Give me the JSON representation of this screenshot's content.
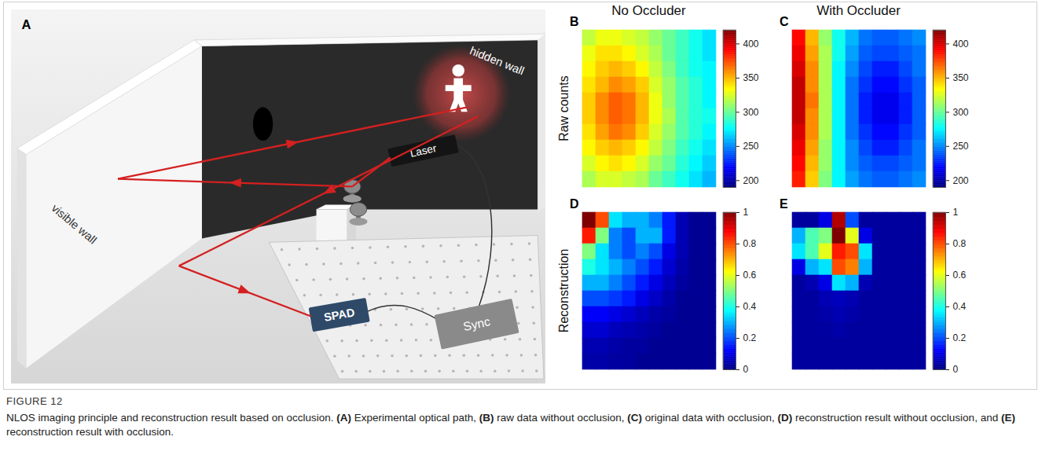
{
  "figure": {
    "label": "FIGURE 12",
    "caption": "NLOS imaging principle and reconstruction result based on occlusion. (A) Experimental optical path, (B) raw data without occlusion, (C) original data with occlusion, (D) reconstruction result without occlusion, and (E) reconstruction result with occlusion."
  },
  "diagram": {
    "panel": "A",
    "labels": {
      "hidden_wall": "hidden wall",
      "visible_wall": "visible wall",
      "laser": "Laser",
      "spad": "SPAD",
      "sync": "Sync"
    }
  },
  "column_titles": [
    "No Occluder",
    "With Occluder"
  ],
  "row_titles": [
    "Raw counts",
    "Reconstruction"
  ],
  "chart_data": [
    {
      "type": "heatmap",
      "panel": "B",
      "tick_labels": false,
      "cells": [
        [
          320,
          330,
          330,
          325,
          320,
          310,
          300,
          290,
          280,
          270
        ],
        [
          330,
          340,
          340,
          335,
          325,
          315,
          300,
          290,
          280,
          270
        ],
        [
          335,
          345,
          350,
          345,
          335,
          320,
          305,
          290,
          280,
          275
        ],
        [
          340,
          350,
          360,
          355,
          345,
          325,
          310,
          295,
          285,
          275
        ],
        [
          345,
          360,
          370,
          365,
          350,
          330,
          310,
          295,
          285,
          275
        ],
        [
          345,
          360,
          370,
          365,
          350,
          330,
          315,
          295,
          285,
          280
        ],
        [
          340,
          355,
          365,
          360,
          345,
          325,
          310,
          295,
          285,
          275
        ],
        [
          335,
          345,
          350,
          345,
          335,
          320,
          305,
          290,
          280,
          270
        ],
        [
          325,
          335,
          340,
          335,
          325,
          310,
          300,
          285,
          275,
          265
        ],
        [
          315,
          325,
          325,
          320,
          315,
          300,
          290,
          280,
          270,
          260
        ]
      ],
      "colorbar": {
        "range": [
          190,
          420
        ],
        "ticks": [
          200,
          250,
          300,
          350,
          400
        ]
      }
    },
    {
      "type": "heatmap",
      "panel": "C",
      "tick_labels": false,
      "cells": [
        [
          390,
          350,
          310,
          280,
          260,
          245,
          240,
          240,
          245,
          250
        ],
        [
          395,
          355,
          315,
          280,
          255,
          240,
          235,
          235,
          240,
          245
        ],
        [
          400,
          360,
          315,
          275,
          250,
          235,
          225,
          225,
          235,
          245
        ],
        [
          405,
          360,
          315,
          275,
          245,
          230,
          220,
          220,
          230,
          240
        ],
        [
          405,
          365,
          315,
          275,
          245,
          225,
          215,
          215,
          225,
          240
        ],
        [
          405,
          360,
          315,
          275,
          245,
          225,
          215,
          215,
          225,
          240
        ],
        [
          400,
          360,
          315,
          275,
          245,
          230,
          220,
          220,
          230,
          240
        ],
        [
          395,
          355,
          310,
          275,
          250,
          235,
          225,
          225,
          235,
          245
        ],
        [
          390,
          350,
          310,
          275,
          250,
          240,
          235,
          235,
          240,
          245
        ],
        [
          385,
          345,
          305,
          275,
          255,
          245,
          240,
          240,
          245,
          250
        ]
      ],
      "colorbar": {
        "range": [
          190,
          420
        ],
        "ticks": [
          200,
          250,
          300,
          350,
          400
        ]
      }
    },
    {
      "type": "heatmap",
      "panel": "D",
      "tick_labels": false,
      "cells": [
        [
          1.0,
          0.8,
          0.35,
          0.3,
          0.3,
          0.25,
          0.15,
          0.05,
          0.02,
          0.02
        ],
        [
          0.85,
          0.5,
          0.25,
          0.2,
          0.3,
          0.3,
          0.15,
          0.05,
          0.02,
          0.02
        ],
        [
          0.5,
          0.35,
          0.25,
          0.2,
          0.25,
          0.2,
          0.1,
          0.05,
          0.02,
          0.02
        ],
        [
          0.4,
          0.35,
          0.3,
          0.25,
          0.2,
          0.15,
          0.08,
          0.04,
          0.02,
          0.02
        ],
        [
          0.3,
          0.3,
          0.25,
          0.2,
          0.15,
          0.1,
          0.06,
          0.03,
          0.02,
          0.02
        ],
        [
          0.2,
          0.2,
          0.18,
          0.15,
          0.1,
          0.07,
          0.04,
          0.02,
          0.02,
          0.02
        ],
        [
          0.12,
          0.12,
          0.1,
          0.08,
          0.06,
          0.04,
          0.03,
          0.02,
          0.02,
          0.02
        ],
        [
          0.08,
          0.08,
          0.06,
          0.05,
          0.04,
          0.03,
          0.02,
          0.02,
          0.02,
          0.02
        ],
        [
          0.05,
          0.05,
          0.04,
          0.03,
          0.03,
          0.02,
          0.02,
          0.02,
          0.02,
          0.02
        ],
        [
          0.04,
          0.04,
          0.03,
          0.03,
          0.02,
          0.02,
          0.02,
          0.02,
          0.02,
          0.02
        ]
      ],
      "colorbar": {
        "range": [
          0,
          1
        ],
        "ticks": [
          0,
          0.2,
          0.4,
          0.6,
          0.8,
          1
        ]
      }
    },
    {
      "type": "heatmap",
      "panel": "E",
      "tick_labels": false,
      "cells": [
        [
          0.03,
          0.03,
          0.1,
          0.95,
          0.2,
          0.03,
          0.03,
          0.03,
          0.03,
          0.03
        ],
        [
          0.3,
          0.45,
          0.5,
          1.0,
          0.6,
          0.1,
          0.03,
          0.03,
          0.03,
          0.03
        ],
        [
          0.35,
          0.45,
          0.6,
          0.85,
          0.8,
          0.35,
          0.03,
          0.03,
          0.03,
          0.03
        ],
        [
          0.1,
          0.3,
          0.35,
          0.8,
          0.75,
          0.3,
          0.03,
          0.03,
          0.03,
          0.03
        ],
        [
          0.03,
          0.05,
          0.1,
          0.35,
          0.3,
          0.05,
          0.03,
          0.03,
          0.03,
          0.03
        ],
        [
          0.03,
          0.03,
          0.05,
          0.06,
          0.05,
          0.03,
          0.03,
          0.03,
          0.03,
          0.03
        ],
        [
          0.03,
          0.03,
          0.04,
          0.05,
          0.04,
          0.03,
          0.03,
          0.03,
          0.03,
          0.03
        ],
        [
          0.03,
          0.03,
          0.03,
          0.04,
          0.03,
          0.03,
          0.03,
          0.03,
          0.03,
          0.03
        ],
        [
          0.03,
          0.03,
          0.03,
          0.03,
          0.03,
          0.03,
          0.03,
          0.03,
          0.03,
          0.03
        ],
        [
          0.03,
          0.03,
          0.03,
          0.03,
          0.03,
          0.03,
          0.03,
          0.03,
          0.03,
          0.03
        ]
      ],
      "colorbar": {
        "range": [
          0,
          1
        ],
        "ticks": [
          0,
          0.2,
          0.4,
          0.6,
          0.8,
          1
        ]
      }
    }
  ]
}
